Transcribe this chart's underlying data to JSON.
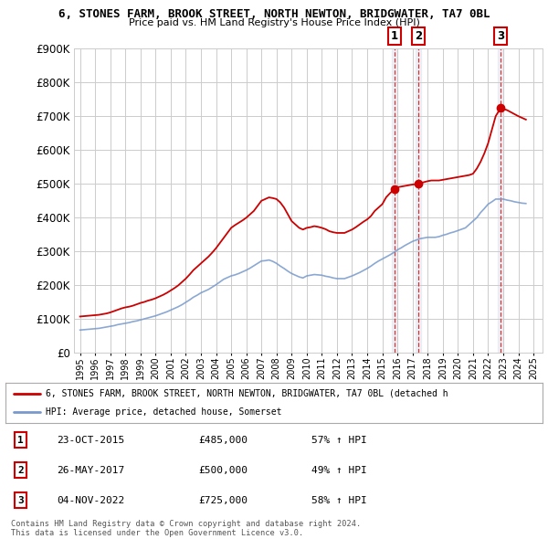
{
  "title": "6, STONES FARM, BROOK STREET, NORTH NEWTON, BRIDGWATER, TA7 0BL",
  "subtitle": "Price paid vs. HM Land Registry's House Price Index (HPI)",
  "ytick_values": [
    0,
    100000,
    200000,
    300000,
    400000,
    500000,
    600000,
    700000,
    800000,
    900000
  ],
  "ylim": [
    0,
    900000
  ],
  "xlim_start": 1994.6,
  "xlim_end": 2025.6,
  "background_color": "#ffffff",
  "grid_color": "#cccccc",
  "red_line_color": "#cc0000",
  "blue_line_color": "#7799cc",
  "transactions": [
    {
      "date_num": 2015.81,
      "price": 485000,
      "label": "1"
    },
    {
      "date_num": 2017.4,
      "price": 500000,
      "label": "2"
    },
    {
      "date_num": 2022.84,
      "price": 725000,
      "label": "3"
    }
  ],
  "transaction_dates": [
    "23-OCT-2015",
    "26-MAY-2017",
    "04-NOV-2022"
  ],
  "transaction_prices": [
    "£485,000",
    "£500,000",
    "£725,000"
  ],
  "transaction_pcts": [
    "57% ↑ HPI",
    "49% ↑ HPI",
    "58% ↑ HPI"
  ],
  "legend_red_label": "6, STONES FARM, BROOK STREET, NORTH NEWTON, BRIDGWATER, TA7 0BL (detached h",
  "legend_blue_label": "HPI: Average price, detached house, Somerset",
  "footer1": "Contains HM Land Registry data © Crown copyright and database right 2024.",
  "footer2": "This data is licensed under the Open Government Licence v3.0.",
  "red_line_x": [
    1995.0,
    1995.25,
    1995.5,
    1995.75,
    1996.0,
    1996.25,
    1996.5,
    1996.75,
    1997.0,
    1997.25,
    1997.5,
    1997.75,
    1998.0,
    1998.25,
    1998.5,
    1998.75,
    1999.0,
    1999.25,
    1999.5,
    1999.75,
    2000.0,
    2000.25,
    2000.5,
    2000.75,
    2001.0,
    2001.25,
    2001.5,
    2001.75,
    2002.0,
    2002.25,
    2002.5,
    2002.75,
    2003.0,
    2003.25,
    2003.5,
    2003.75,
    2004.0,
    2004.25,
    2004.5,
    2004.75,
    2005.0,
    2005.25,
    2005.5,
    2005.75,
    2006.0,
    2006.25,
    2006.5,
    2006.75,
    2007.0,
    2007.25,
    2007.5,
    2007.75,
    2008.0,
    2008.25,
    2008.5,
    2008.75,
    2009.0,
    2009.25,
    2009.5,
    2009.75,
    2010.0,
    2010.25,
    2010.5,
    2010.75,
    2011.0,
    2011.25,
    2011.5,
    2011.75,
    2012.0,
    2012.25,
    2012.5,
    2012.75,
    2013.0,
    2013.25,
    2013.5,
    2013.75,
    2014.0,
    2014.25,
    2014.5,
    2014.75,
    2015.0,
    2015.25,
    2015.5,
    2015.81,
    2016.0,
    2016.25,
    2016.5,
    2016.75,
    2017.0,
    2017.4,
    2017.75,
    2018.0,
    2018.25,
    2018.5,
    2018.75,
    2019.0,
    2019.25,
    2019.5,
    2019.75,
    2020.0,
    2020.25,
    2020.5,
    2020.75,
    2021.0,
    2021.25,
    2021.5,
    2021.75,
    2022.0,
    2022.25,
    2022.5,
    2022.84,
    2023.0,
    2023.25,
    2023.5,
    2023.75,
    2024.0,
    2024.25,
    2024.5
  ],
  "red_line_y": [
    108000,
    109000,
    110000,
    111000,
    112000,
    113000,
    115000,
    117000,
    120000,
    124000,
    128000,
    132000,
    135000,
    137000,
    140000,
    144000,
    148000,
    151000,
    155000,
    158000,
    162000,
    167000,
    172000,
    178000,
    185000,
    192000,
    200000,
    210000,
    220000,
    232000,
    245000,
    255000,
    265000,
    275000,
    285000,
    297000,
    310000,
    325000,
    340000,
    355000,
    370000,
    378000,
    385000,
    392000,
    400000,
    410000,
    420000,
    435000,
    450000,
    455000,
    460000,
    458000,
    455000,
    445000,
    430000,
    410000,
    390000,
    380000,
    370000,
    365000,
    370000,
    372000,
    375000,
    373000,
    370000,
    366000,
    360000,
    357000,
    355000,
    355000,
    355000,
    360000,
    365000,
    372000,
    380000,
    388000,
    395000,
    405000,
    420000,
    430000,
    440000,
    460000,
    472000,
    485000,
    490000,
    492000,
    494000,
    496000,
    498000,
    500000,
    505000,
    508000,
    510000,
    510000,
    510000,
    512000,
    514000,
    516000,
    518000,
    520000,
    522000,
    524000,
    526000,
    530000,
    545000,
    565000,
    590000,
    620000,
    660000,
    700000,
    725000,
    722000,
    718000,
    712000,
    706000,
    700000,
    695000,
    690000
  ],
  "blue_line_x": [
    1995.0,
    1995.25,
    1995.5,
    1995.75,
    1996.0,
    1996.25,
    1996.5,
    1996.75,
    1997.0,
    1997.25,
    1997.5,
    1997.75,
    1998.0,
    1998.25,
    1998.5,
    1998.75,
    1999.0,
    1999.25,
    1999.5,
    1999.75,
    2000.0,
    2000.25,
    2000.5,
    2000.75,
    2001.0,
    2001.25,
    2001.5,
    2001.75,
    2002.0,
    2002.25,
    2002.5,
    2002.75,
    2003.0,
    2003.25,
    2003.5,
    2003.75,
    2004.0,
    2004.25,
    2004.5,
    2004.75,
    2005.0,
    2005.25,
    2005.5,
    2005.75,
    2006.0,
    2006.25,
    2006.5,
    2006.75,
    2007.0,
    2007.25,
    2007.5,
    2007.75,
    2008.0,
    2008.25,
    2008.5,
    2008.75,
    2009.0,
    2009.25,
    2009.5,
    2009.75,
    2010.0,
    2010.25,
    2010.5,
    2010.75,
    2011.0,
    2011.25,
    2011.5,
    2011.75,
    2012.0,
    2012.25,
    2012.5,
    2012.75,
    2013.0,
    2013.25,
    2013.5,
    2013.75,
    2014.0,
    2014.25,
    2014.5,
    2014.75,
    2015.0,
    2015.25,
    2015.5,
    2015.75,
    2016.0,
    2016.25,
    2016.5,
    2016.75,
    2017.0,
    2017.25,
    2017.5,
    2017.75,
    2018.0,
    2018.25,
    2018.5,
    2018.75,
    2019.0,
    2019.25,
    2019.5,
    2019.75,
    2020.0,
    2020.25,
    2020.5,
    2020.75,
    2021.0,
    2021.25,
    2021.5,
    2021.75,
    2022.0,
    2022.25,
    2022.5,
    2022.75,
    2023.0,
    2023.25,
    2023.5,
    2023.75,
    2024.0,
    2024.25,
    2024.5
  ],
  "blue_line_y": [
    68000,
    69000,
    70000,
    71000,
    72000,
    73000,
    75000,
    77000,
    79000,
    81000,
    84000,
    86000,
    88000,
    90000,
    93000,
    95000,
    98000,
    101000,
    104000,
    107000,
    110000,
    114000,
    118000,
    122000,
    127000,
    132000,
    137000,
    143000,
    150000,
    157000,
    165000,
    171000,
    178000,
    183000,
    188000,
    195000,
    202000,
    210000,
    218000,
    223000,
    228000,
    231000,
    235000,
    240000,
    245000,
    251000,
    258000,
    265000,
    272000,
    273000,
    275000,
    271000,
    265000,
    257000,
    250000,
    242000,
    235000,
    230000,
    225000,
    222000,
    228000,
    230000,
    232000,
    231000,
    230000,
    227000,
    225000,
    222000,
    220000,
    220000,
    220000,
    224000,
    228000,
    233000,
    238000,
    244000,
    250000,
    257000,
    265000,
    272000,
    278000,
    284000,
    290000,
    297000,
    305000,
    311000,
    318000,
    324000,
    330000,
    334000,
    338000,
    340000,
    342000,
    342000,
    342000,
    344000,
    348000,
    351000,
    355000,
    358000,
    362000,
    366000,
    370000,
    380000,
    390000,
    400000,
    415000,
    427000,
    440000,
    447000,
    455000,
    455000,
    455000,
    452000,
    450000,
    447000,
    445000,
    443000,
    442000
  ]
}
